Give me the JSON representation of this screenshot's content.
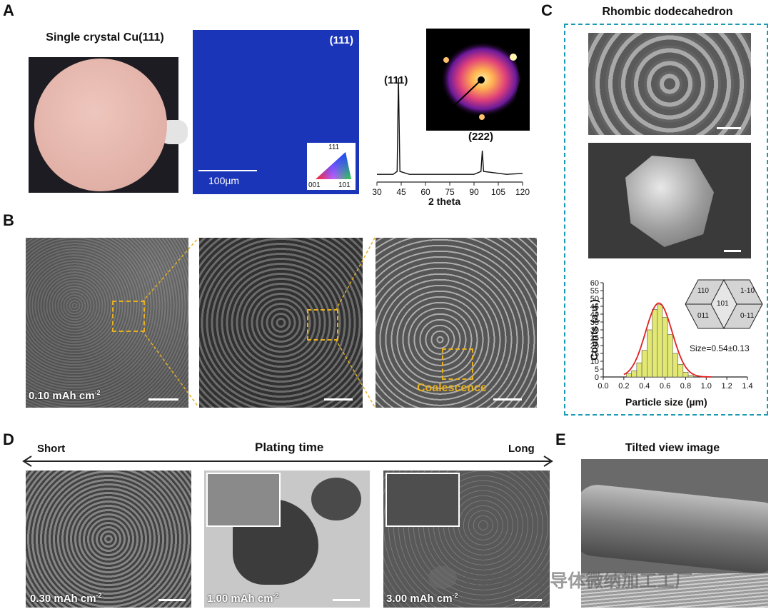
{
  "panels": {
    "A": "A",
    "B": "B",
    "C": "C",
    "D": "D",
    "E": "E"
  },
  "a": {
    "wafer_title": "Single crystal Cu(111)",
    "ebsd_label": "(111)",
    "ebsd_scale": "100µm",
    "ipf": {
      "top": "111",
      "left": "001",
      "right": "101"
    },
    "peak1": "(111)",
    "peak2": "(222)"
  },
  "chart_data": [
    {
      "type": "line",
      "title": "",
      "xlabel": "2 theta",
      "ylabel": "",
      "xlim": [
        30,
        120
      ],
      "xticks": [
        30,
        45,
        60,
        75,
        90,
        105,
        120
      ],
      "peaks": [
        {
          "x": 43.3,
          "label": "(111)",
          "rel_height": 1.0
        },
        {
          "x": 95.1,
          "label": "(222)",
          "rel_height": 0.26
        }
      ],
      "series": [
        {
          "x": [
            30,
            40,
            42.5,
            43.3,
            44.2,
            50,
            70,
            90,
            94.3,
            95.1,
            95.9,
            110,
            120
          ],
          "y": [
            0.02,
            0.02,
            0.05,
            1.0,
            0.05,
            0.02,
            0.02,
            0.02,
            0.05,
            0.26,
            0.05,
            0.02,
            0.03
          ]
        }
      ]
    },
    {
      "type": "bar",
      "title": "",
      "xlabel": "Particle size (µm)",
      "ylabel": "Counts (a.u.)",
      "xlim": [
        0.0,
        1.4
      ],
      "ylim": [
        0,
        60
      ],
      "xticks": [
        "0.0",
        "0.2",
        "0.4",
        "0.6",
        "0.8",
        "1.0",
        "1.2",
        "1.4"
      ],
      "yticks": [
        "0",
        "5",
        "10",
        "15",
        "20",
        "25",
        "30",
        "35",
        "40",
        "45",
        "50",
        "55",
        "60"
      ],
      "bin_width": 0.05,
      "bins": [
        0.25,
        0.3,
        0.35,
        0.4,
        0.45,
        0.5,
        0.55,
        0.6,
        0.65,
        0.7,
        0.75,
        0.8,
        0.85
      ],
      "values": [
        2,
        4,
        9,
        17,
        30,
        43,
        46,
        38,
        27,
        15,
        8,
        3,
        1
      ],
      "fit": {
        "type": "gaussian",
        "mean": 0.54,
        "sigma": 0.13,
        "peak": 47
      },
      "annotation": "Size=0.54±0.13"
    }
  ],
  "b": {
    "label1": "0.10 mAh cm",
    "label_sup": "-2",
    "coalescence": "Coalescence"
  },
  "c": {
    "title": "Rhombic dodecahedron",
    "facets": {
      "f1": "110",
      "f2": "1-10",
      "f3": "101",
      "f4": "011",
      "f5": "0-11"
    }
  },
  "d": {
    "axis_title": "Plating time",
    "short": "Short",
    "long": "Long",
    "l1": "0.30 mAh cm",
    "l2": "1.00 mAh cm",
    "l3": "3.00 mAh cm",
    "sup": "-2"
  },
  "e": {
    "title": "Tilted view image"
  },
  "watermark": "公众号 · 半导体微纳加工工厂",
  "colors": {
    "ebsd": "#1b35b8",
    "wafer": "#e6b8b0",
    "dashed_box": "#e6b020",
    "frame_c": "#1b9bb3",
    "hist": "#e2e872",
    "fit": "#e02020"
  }
}
